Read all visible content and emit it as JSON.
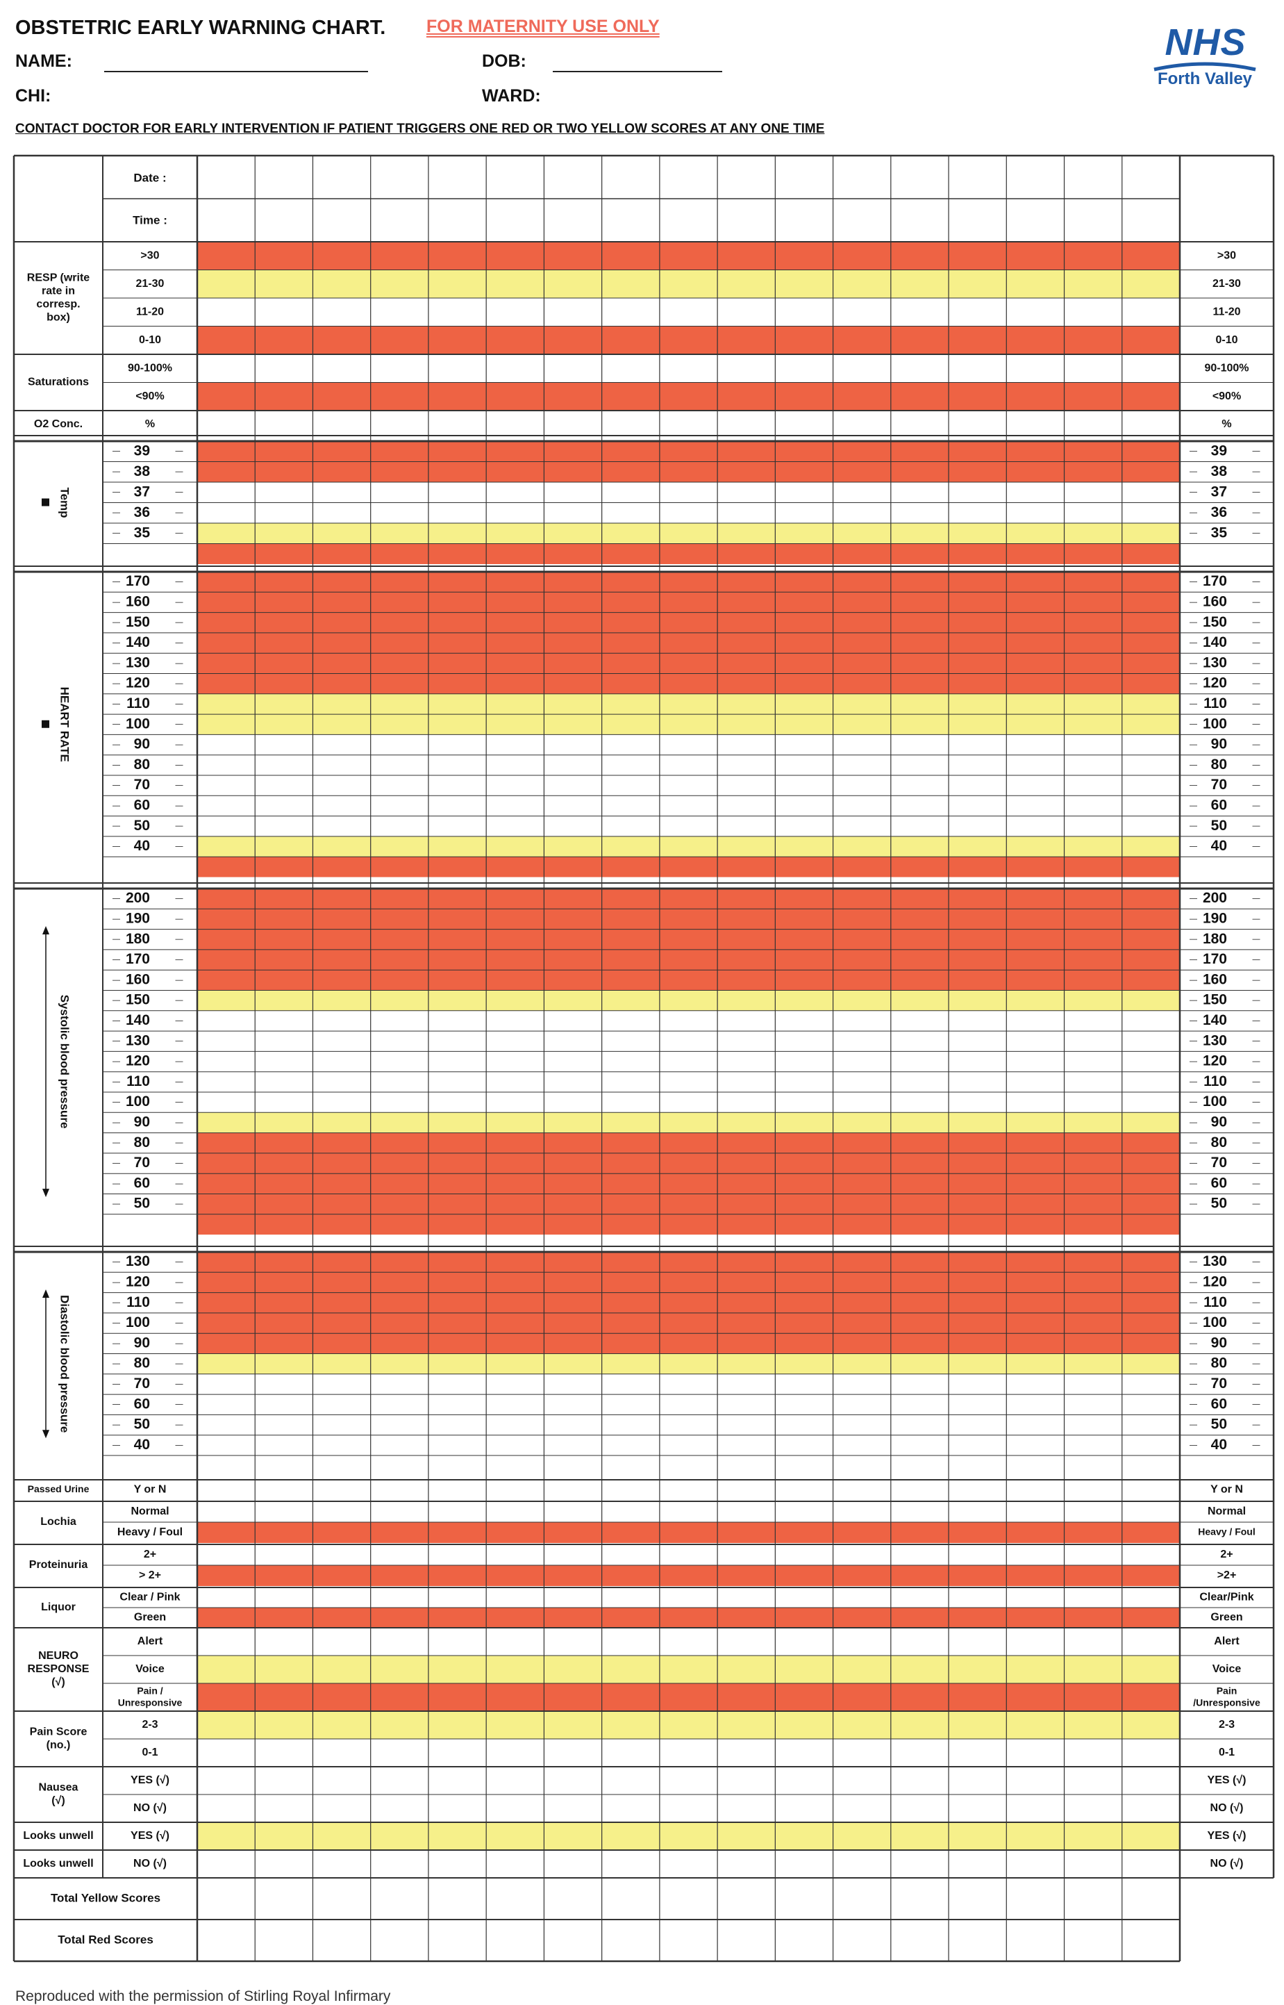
{
  "header": {
    "title": "OBSTETRIC EARLY WARNING CHART.",
    "maternity_only": "FOR MATERNITY USE ONLY",
    "name_label": "NAME:",
    "dob_label": "DOB:",
    "chi_label": "CHI:",
    "ward_label": "WARD:",
    "contact_notice": "CONTACT DOCTOR  FOR EARLY INTERVENTION IF PATIENT TRIGGERS ONE RED OR TWO YELLOW SCORES AT ANY ONE TIME"
  },
  "logo": {
    "nhs": "NHS",
    "region": "Forth Valley"
  },
  "colors": {
    "red": "#ee6344",
    "yellow": "#f6f08a",
    "white": "#ffffff",
    "border": "#333333"
  },
  "chart": {
    "num_columns": 17,
    "date_label": "Date :",
    "time_label": "Time :",
    "sections": [
      {
        "label": "RESP (write rate in corresp. box)",
        "rows": [
          {
            "label": ">30",
            "right": ">30",
            "color": "red"
          },
          {
            "label": "21-30",
            "right": "21-30",
            "color": "yellow"
          },
          {
            "label": "11-20",
            "right": "11-20",
            "color": "white"
          },
          {
            "label": "0-10",
            "right": "0-10",
            "color": "red"
          }
        ]
      },
      {
        "label": "Saturations",
        "rows": [
          {
            "label": "90-100%",
            "right": "90-100%",
            "color": "white"
          },
          {
            "label": "<90%",
            "right": "<90%",
            "color": "red"
          }
        ]
      },
      {
        "label": "O2 Conc.",
        "rows": [
          {
            "label": "%",
            "right": "%",
            "color": "white"
          }
        ]
      },
      {
        "label": "Temp",
        "vertical": true,
        "scale": true,
        "rows": [
          {
            "label": "39",
            "right": "39",
            "color": "red"
          },
          {
            "label": "38",
            "right": "38",
            "color": "red"
          },
          {
            "label": "37",
            "right": "37",
            "color": "white"
          },
          {
            "label": "36",
            "right": "36",
            "color": "white"
          },
          {
            "label": "35",
            "right": "35",
            "color": "yellow"
          },
          {
            "label": "",
            "right": "",
            "color": "red"
          }
        ]
      },
      {
        "label": "HEART RATE",
        "vertical": true,
        "scale": true,
        "rows": [
          {
            "label": "170",
            "right": "170",
            "color": "red"
          },
          {
            "label": "160",
            "right": "160",
            "color": "red"
          },
          {
            "label": "150",
            "right": "150",
            "color": "red"
          },
          {
            "label": "140",
            "right": "140",
            "color": "red"
          },
          {
            "label": "130",
            "right": "130",
            "color": "red"
          },
          {
            "label": "120",
            "right": "120",
            "color": "red"
          },
          {
            "label": "110",
            "right": "110",
            "color": "yellow"
          },
          {
            "label": "100",
            "right": "100",
            "color": "yellow"
          },
          {
            "label": "90",
            "right": "90",
            "color": "white"
          },
          {
            "label": "80",
            "right": "80",
            "color": "white"
          },
          {
            "label": "70",
            "right": "70",
            "color": "white"
          },
          {
            "label": "60",
            "right": "60",
            "color": "white"
          },
          {
            "label": "50",
            "right": "50",
            "color": "white"
          },
          {
            "label": "40",
            "right": "40",
            "color": "yellow"
          },
          {
            "label": "",
            "right": "",
            "color": "red"
          }
        ]
      },
      {
        "label": "Systolic blood pressure",
        "vertical": true,
        "scale": true,
        "rows": [
          {
            "label": "200",
            "right": "200",
            "color": "red"
          },
          {
            "label": "190",
            "right": "190",
            "color": "red"
          },
          {
            "label": "180",
            "right": "180",
            "color": "red"
          },
          {
            "label": "170",
            "right": "170",
            "color": "red"
          },
          {
            "label": "160",
            "right": "160",
            "color": "red"
          },
          {
            "label": "150",
            "right": "150",
            "color": "yellow"
          },
          {
            "label": "140",
            "right": "140",
            "color": "white"
          },
          {
            "label": "130",
            "right": "130",
            "color": "white"
          },
          {
            "label": "120",
            "right": "120",
            "color": "white"
          },
          {
            "label": "110",
            "right": "110",
            "color": "white"
          },
          {
            "label": "100",
            "right": "100",
            "color": "white"
          },
          {
            "label": "90",
            "right": "90",
            "color": "yellow"
          },
          {
            "label": "80",
            "right": "80",
            "color": "red"
          },
          {
            "label": "70",
            "right": "70",
            "color": "red"
          },
          {
            "label": "60",
            "right": "60",
            "color": "red"
          },
          {
            "label": "50",
            "right": "50",
            "color": "red"
          },
          {
            "label": "",
            "right": "",
            "color": "red"
          }
        ]
      },
      {
        "label": "Diastolic blood pressure",
        "vertical": true,
        "scale": true,
        "rows": [
          {
            "label": "130",
            "right": "130",
            "color": "red"
          },
          {
            "label": "120",
            "right": "120",
            "color": "red"
          },
          {
            "label": "110",
            "right": "110",
            "color": "red"
          },
          {
            "label": "100",
            "right": "100",
            "color": "red"
          },
          {
            "label": "90",
            "right": "90",
            "color": "red"
          },
          {
            "label": "80",
            "right": "80",
            "color": "yellow"
          },
          {
            "label": "70",
            "right": "70",
            "color": "white"
          },
          {
            "label": "60",
            "right": "60",
            "color": "white"
          },
          {
            "label": "50",
            "right": "50",
            "color": "white"
          },
          {
            "label": "40",
            "right": "40",
            "color": "white"
          },
          {
            "label": "",
            "right": "",
            "color": "white"
          }
        ]
      },
      {
        "label": "Passed Urine",
        "rows": [
          {
            "label": "Y or N",
            "right": "Y or N",
            "color": "white"
          }
        ]
      },
      {
        "label": "Lochia",
        "rows": [
          {
            "label": "Normal",
            "right": "Normal",
            "color": "white"
          },
          {
            "label": "Heavy / Foul",
            "right": "Heavy / Foul",
            "color": "red"
          }
        ]
      },
      {
        "label": "Proteinuria",
        "rows": [
          {
            "label": "2+",
            "right": "2+",
            "color": "white"
          },
          {
            "label": "> 2+",
            "right": ">2+",
            "color": "red"
          }
        ]
      },
      {
        "label": "Liquor",
        "rows": [
          {
            "label": "Clear / Pink",
            "right": "Clear/Pink",
            "color": "white"
          },
          {
            "label": "Green",
            "right": "Green",
            "color": "red"
          }
        ]
      },
      {
        "label": "NEURO RESPONSE (√)",
        "rows": [
          {
            "label": "Alert",
            "right": "Alert",
            "color": "white"
          },
          {
            "label": "Voice",
            "right": "Voice",
            "color": "yellow"
          },
          {
            "label": "Pain / Unresponsive",
            "right": "Pain /Unresponsive",
            "color": "red"
          }
        ]
      },
      {
        "label": "Pain Score (no.)",
        "rows": [
          {
            "label": "2-3",
            "right": "2-3",
            "color": "yellow"
          },
          {
            "label": "0-1",
            "right": "0-1",
            "color": "white"
          }
        ]
      },
      {
        "label": "Nausea (√)",
        "rows": [
          {
            "label": "YES (√)",
            "right": "YES (√)",
            "color": "white"
          },
          {
            "label": "NO (√)",
            "right": "NO (√)",
            "color": "white"
          }
        ]
      },
      {
        "label": "Looks unwell",
        "rows": [
          {
            "label": "YES (√)",
            "right": "YES (√)",
            "color": "yellow"
          }
        ]
      },
      {
        "label": "Looks unwell",
        "rows": [
          {
            "label": "NO (√)",
            "right": "NO (√)",
            "color": "white"
          }
        ]
      }
    ],
    "totals": [
      "Total Yellow Scores",
      "Total Red Scores"
    ]
  },
  "footer": "Reproduced with the permission of Stirling Royal Infirmary"
}
